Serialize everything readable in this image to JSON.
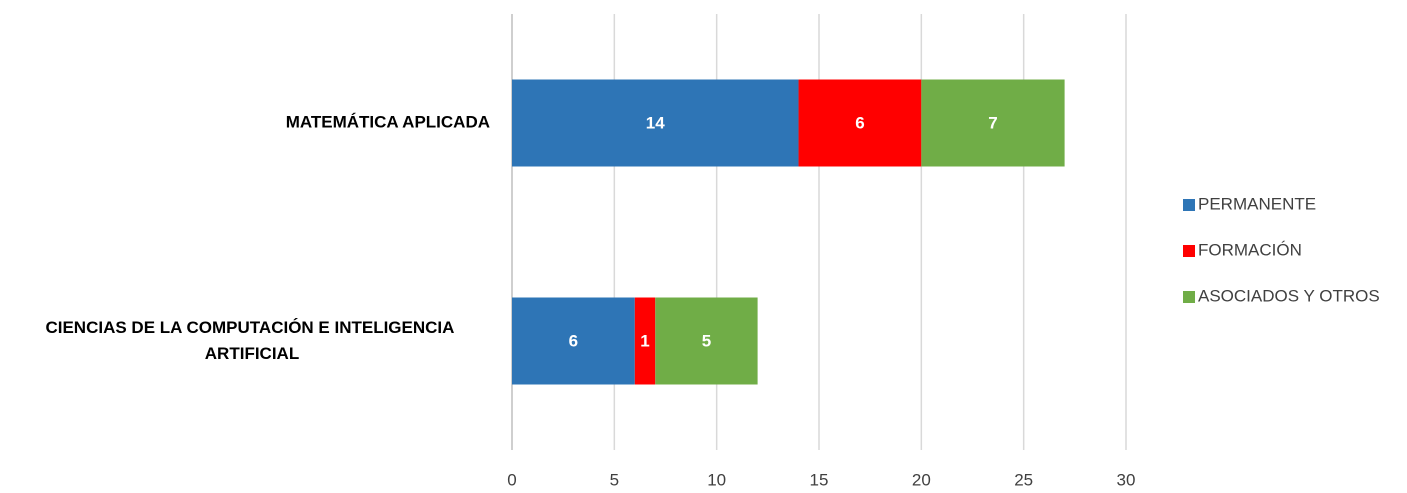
{
  "chart_data": {
    "type": "stacked-bar-horizontal",
    "categories": [
      "MATEMÁTICA APLICADA",
      "CIENCIAS DE LA COMPUTACIÓN E INTELIGENCIA ARTIFICIAL"
    ],
    "series": [
      {
        "name": "PERMANENTE",
        "color": "#2e75b6",
        "values": [
          14,
          6
        ]
      },
      {
        "name": "FORMACIÓN",
        "color": "#ff0000",
        "values": [
          6,
          1
        ]
      },
      {
        "name": "ASOCIADOS Y OTROS",
        "color": "#70ad47",
        "values": [
          7,
          5
        ]
      }
    ],
    "xlim": [
      0,
      30
    ],
    "xticks": [
      0,
      5,
      10,
      15,
      20,
      25,
      30
    ],
    "grid": true,
    "legend": "right"
  }
}
